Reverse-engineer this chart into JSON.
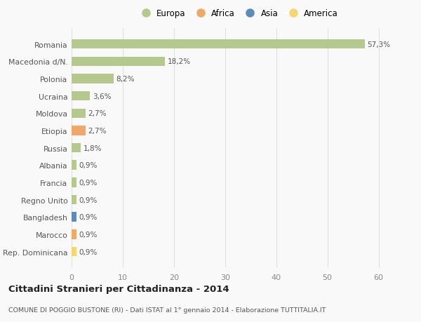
{
  "categories": [
    "Rep. Dominicana",
    "Marocco",
    "Bangladesh",
    "Regno Unito",
    "Francia",
    "Albania",
    "Russia",
    "Etiopia",
    "Moldova",
    "Ucraina",
    "Polonia",
    "Macedonia d/N.",
    "Romania"
  ],
  "values": [
    0.9,
    0.9,
    0.9,
    0.9,
    0.9,
    0.9,
    1.8,
    2.7,
    2.7,
    3.6,
    8.2,
    18.2,
    57.3
  ],
  "labels": [
    "0,9%",
    "0,9%",
    "0,9%",
    "0,9%",
    "0,9%",
    "0,9%",
    "1,8%",
    "2,7%",
    "2,7%",
    "3,6%",
    "8,2%",
    "18,2%",
    "57,3%"
  ],
  "colors": [
    "#f5d76e",
    "#f0a868",
    "#5b8db8",
    "#b5c98e",
    "#b5c98e",
    "#b5c98e",
    "#b5c98e",
    "#f0a868",
    "#b5c98e",
    "#b5c98e",
    "#b5c98e",
    "#b5c98e",
    "#b5c98e"
  ],
  "legend_labels": [
    "Europa",
    "Africa",
    "Asia",
    "America"
  ],
  "legend_colors": [
    "#b5c98e",
    "#f0a868",
    "#5b8db8",
    "#f5d76e"
  ],
  "title": "Cittadini Stranieri per Cittadinanza - 2014",
  "subtitle": "COMUNE DI POGGIO BUSTONE (RI) - Dati ISTAT al 1° gennaio 2014 - Elaborazione TUTTITALIA.IT",
  "xlim": [
    0,
    65
  ],
  "xticks": [
    0,
    10,
    20,
    30,
    40,
    50,
    60
  ],
  "background_color": "#f9f9f9",
  "grid_color": "#e0e0e0",
  "bar_height": 0.55
}
